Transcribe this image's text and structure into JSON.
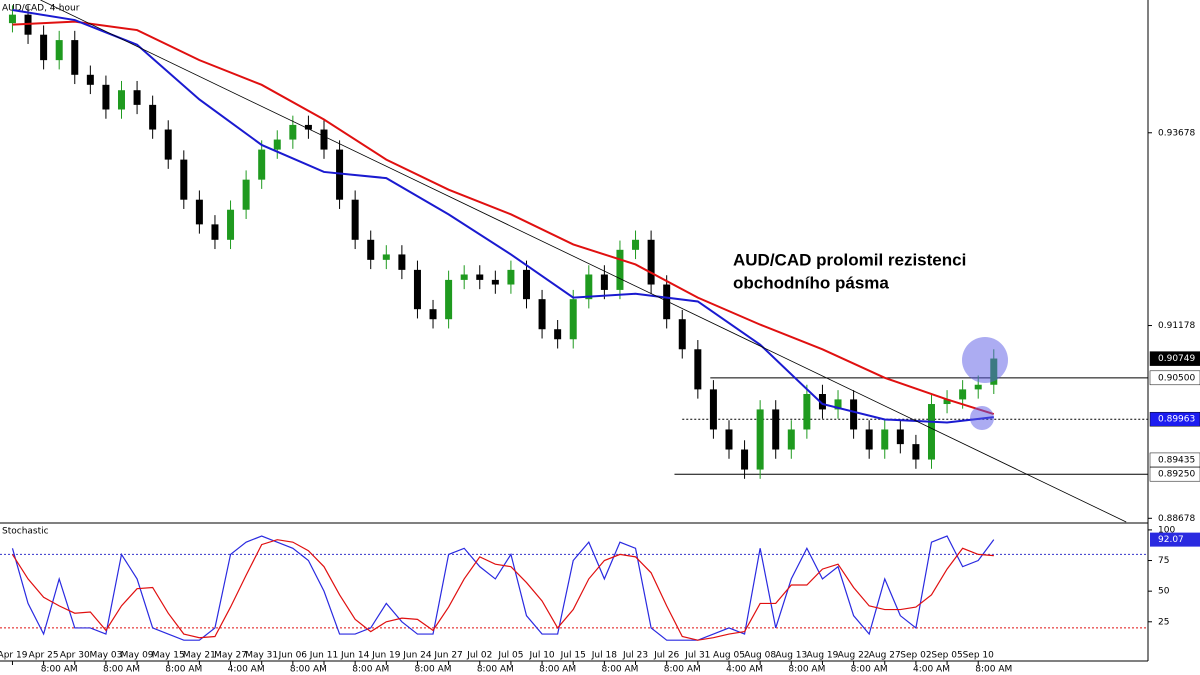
{
  "chart_data": [
    {
      "type": "candlestick",
      "title": "AUD/CAD, 4-hour",
      "annotation": [
        "AUD/CAD prolomil rezistenci",
        "obchodního pásma"
      ],
      "categories": [
        "Apr 19",
        null,
        "Apr 25",
        null,
        "Apr 30",
        null,
        "May 03",
        null,
        "May 09",
        null,
        "May 15",
        null,
        "May 21",
        null,
        "May 27",
        null,
        "May 31",
        null,
        "Jun 06",
        null,
        "Jun 11",
        null,
        "Jun 14",
        null,
        "Jun 19",
        null,
        "Jun 24",
        null,
        "Jun 27",
        null,
        "Jul 02",
        null,
        "Jul 05",
        null,
        "Jul 10",
        null,
        "Jul 15",
        null,
        "Jul 18",
        null,
        "Jul 23",
        null,
        "Jul 26",
        null,
        "Jul 31",
        null,
        "Aug 05",
        null,
        "Aug 08",
        null,
        "Aug 13",
        null,
        "Aug 19",
        null,
        "Aug 22",
        null,
        "Aug 27",
        null,
        "Sep 02",
        null,
        "Sep 05",
        null,
        "Sep 10",
        null
      ],
      "times": [
        null,
        null,
        null,
        "8:00 AM",
        null,
        null,
        null,
        "8:00 AM",
        null,
        null,
        null,
        "8:00 AM",
        null,
        null,
        null,
        "4:00 AM",
        null,
        null,
        null,
        "8:00 AM",
        null,
        null,
        null,
        "8:00 AM",
        null,
        null,
        null,
        "8:00 AM",
        null,
        null,
        null,
        "8:00 AM",
        null,
        null,
        null,
        "8:00 AM",
        null,
        null,
        null,
        "8:00 AM",
        null,
        null,
        null,
        "8:00 AM",
        null,
        null,
        null,
        "4:00 AM",
        null,
        null,
        null,
        "8:00 AM",
        null,
        null,
        null,
        "8:00 AM",
        null,
        null,
        null,
        "4:00 AM",
        null,
        null,
        null,
        "8:00 AM"
      ],
      "xlim": [
        -0.8,
        72.9
      ],
      "open": [
        0.951,
        0.9521,
        0.9495,
        0.9462,
        0.9488,
        0.9443,
        0.943,
        0.9398,
        0.9423,
        0.9404,
        0.9372,
        0.9333,
        0.9281,
        0.9249,
        0.9229,
        0.9268,
        0.9307,
        0.9346,
        0.9359,
        0.9378,
        0.9372,
        0.9346,
        0.9281,
        0.9229,
        0.9203,
        0.921,
        0.919,
        0.9139,
        0.9126,
        0.9177,
        0.9184,
        0.9177,
        0.9171,
        0.919,
        0.9152,
        0.9113,
        0.91,
        0.9152,
        0.9184,
        0.9164,
        0.9216,
        0.9229,
        0.9171,
        0.9126,
        0.9087,
        0.9035,
        0.8983,
        0.8957,
        0.8931,
        0.9009,
        0.8957,
        0.8983,
        0.9029,
        0.9009,
        0.9022,
        0.8983,
        0.8957,
        0.8983,
        0.8964,
        0.8944,
        0.9016,
        0.9022,
        0.9035,
        0.9041
      ],
      "high": [
        0.9533,
        0.9533,
        0.9507,
        0.95,
        0.95,
        0.9455,
        0.9442,
        0.9435,
        0.9435,
        0.9416,
        0.9384,
        0.9345,
        0.9293,
        0.9261,
        0.928,
        0.9319,
        0.9358,
        0.9371,
        0.939,
        0.939,
        0.9384,
        0.9358,
        0.9293,
        0.9241,
        0.9222,
        0.9222,
        0.9202,
        0.9151,
        0.9189,
        0.9196,
        0.9196,
        0.9189,
        0.9202,
        0.9202,
        0.9164,
        0.9125,
        0.9164,
        0.9196,
        0.9196,
        0.9228,
        0.9241,
        0.9241,
        0.9183,
        0.9138,
        0.9099,
        0.9047,
        0.8995,
        0.8969,
        0.9021,
        0.9021,
        0.8995,
        0.9041,
        0.9041,
        0.9034,
        0.9034,
        0.8995,
        0.8995,
        0.8995,
        0.8976,
        0.9028,
        0.9034,
        0.9047,
        0.9053,
        0.9087
      ],
      "low": [
        0.9498,
        0.9483,
        0.945,
        0.945,
        0.9431,
        0.9418,
        0.9386,
        0.9386,
        0.9392,
        0.936,
        0.9321,
        0.9269,
        0.9237,
        0.9217,
        0.9217,
        0.9256,
        0.9295,
        0.9334,
        0.9347,
        0.936,
        0.9334,
        0.9269,
        0.9217,
        0.9191,
        0.9191,
        0.9178,
        0.9127,
        0.9114,
        0.9114,
        0.9165,
        0.9165,
        0.9159,
        0.9159,
        0.914,
        0.9101,
        0.9088,
        0.9088,
        0.914,
        0.9152,
        0.9152,
        0.9204,
        0.9159,
        0.9114,
        0.9075,
        0.9023,
        0.8971,
        0.8945,
        0.8919,
        0.8919,
        0.8945,
        0.8945,
        0.8971,
        0.8997,
        0.8997,
        0.8971,
        0.8945,
        0.8945,
        0.8952,
        0.8932,
        0.8932,
        0.9004,
        0.901,
        0.9023,
        0.9029
      ],
      "close": [
        0.9521,
        0.9495,
        0.9462,
        0.9488,
        0.9443,
        0.943,
        0.9398,
        0.9423,
        0.9404,
        0.9372,
        0.9333,
        0.9281,
        0.9249,
        0.9229,
        0.9268,
        0.9307,
        0.9346,
        0.9359,
        0.9378,
        0.9372,
        0.9346,
        0.9281,
        0.9229,
        0.9203,
        0.921,
        0.919,
        0.9139,
        0.9126,
        0.9177,
        0.9184,
        0.9177,
        0.9171,
        0.919,
        0.9152,
        0.9113,
        0.91,
        0.9152,
        0.9184,
        0.9164,
        0.9216,
        0.9229,
        0.9171,
        0.9126,
        0.9087,
        0.9035,
        0.8983,
        0.8957,
        0.8931,
        0.9009,
        0.8957,
        0.8983,
        0.9029,
        0.9009,
        0.9022,
        0.8983,
        0.8957,
        0.8983,
        0.8964,
        0.8944,
        0.9016,
        0.9022,
        0.9035,
        0.9041,
        0.9075
      ],
      "up_color": "#1f9a1f",
      "down_color": "#000000",
      "ylim": [
        0.8863,
        0.954
      ],
      "yticks": [
        0.93678,
        0.91178,
        0.88678
      ],
      "price_labels": [
        {
          "value": 0.90749,
          "bg": "#000000",
          "fg": "#ffffff"
        },
        {
          "value": {
            "value": 0.905,
            "label": "0.90500"
          },
          "bg": "#ffffff",
          "fg": "#000000"
        },
        {
          "value": 0.89963,
          "bg": "#1c1cf0",
          "fg": "#ffffff"
        },
        {
          "value": 0.89435,
          "bg": "#ffffff",
          "fg": "#000000"
        },
        {
          "value": {
            "value": 0.8925,
            "label": "0.89250"
          },
          "bg": "#ffffff",
          "fg": "#000000"
        }
      ],
      "levels": [
        {
          "value": 0.905,
          "start": 44.8,
          "dotted": false
        },
        {
          "value": 0.89963,
          "start": 43,
          "dotted": true
        },
        {
          "value": 0.8925,
          "start": 42.5,
          "dotted": false
        }
      ],
      "lines": [
        {
          "color": "#e01010",
          "x": [
            0,
            4,
            8,
            12,
            16,
            20,
            24,
            28,
            32,
            36,
            40,
            44,
            48,
            52,
            56,
            60,
            63
          ],
          "values": [
            0.9508,
            0.9512,
            0.9501,
            0.9462,
            0.943,
            0.9385,
            0.9333,
            0.9294,
            0.9262,
            0.9223,
            0.9197,
            0.9154,
            0.9119,
            0.9087,
            0.905,
            0.9022,
            0.9003
          ]
        },
        {
          "color": "#1a1ad0",
          "x": [
            0,
            4,
            8,
            12,
            16,
            20,
            24,
            28,
            32,
            36,
            40,
            44,
            48,
            52,
            56,
            60,
            63
          ],
          "values": [
            0.9527,
            0.9514,
            0.9482,
            0.9411,
            0.9352,
            0.9317,
            0.9309,
            0.9262,
            0.921,
            0.9154,
            0.9159,
            0.9149,
            0.9093,
            0.9016,
            0.8996,
            0.8992,
            0.8999
          ]
        },
        {
          "color": "#000000",
          "x": [
            1.8,
            71.5
          ],
          "values": [
            0.954,
            0.8863
          ]
        }
      ]
    },
    {
      "type": "line",
      "title": "Stochastic",
      "ylim": [
        -7,
        104
      ],
      "yticks": [
        100,
        75,
        50,
        25
      ],
      "levels": [
        {
          "value": 80,
          "color": "#3333cc"
        },
        {
          "value": 20,
          "color": "#e01010"
        }
      ],
      "series": [
        {
          "color": "#2a2ae0",
          "values": [
            85,
            40,
            15,
            60,
            20,
            20,
            15,
            80,
            60,
            20,
            15,
            10,
            10,
            20,
            80,
            90,
            95,
            90,
            85,
            75,
            50,
            15,
            15,
            20,
            40,
            25,
            15,
            15,
            80,
            85,
            70,
            60,
            80,
            30,
            15,
            15,
            75,
            90,
            60,
            90,
            85,
            20,
            10,
            10,
            10,
            15,
            20,
            15,
            85,
            20,
            60,
            85,
            60,
            70,
            30,
            15,
            60,
            30,
            20,
            90,
            95,
            70,
            75,
            92.07
          ]
        },
        {
          "color": "#e01010",
          "values": [
            80,
            60,
            45,
            38,
            32,
            33,
            18,
            38,
            52,
            53,
            32,
            15,
            12,
            13,
            37,
            63,
            88,
            92,
            90,
            83,
            70,
            47,
            27,
            17,
            25,
            28,
            27,
            18,
            37,
            60,
            78,
            72,
            70,
            57,
            42,
            20,
            35,
            60,
            75,
            80,
            78,
            65,
            38,
            13,
            10,
            12,
            15,
            17,
            40,
            40,
            55,
            55,
            68,
            72,
            53,
            38,
            35,
            35,
            37,
            47,
            68,
            85,
            80,
            79
          ]
        }
      ]
    }
  ]
}
